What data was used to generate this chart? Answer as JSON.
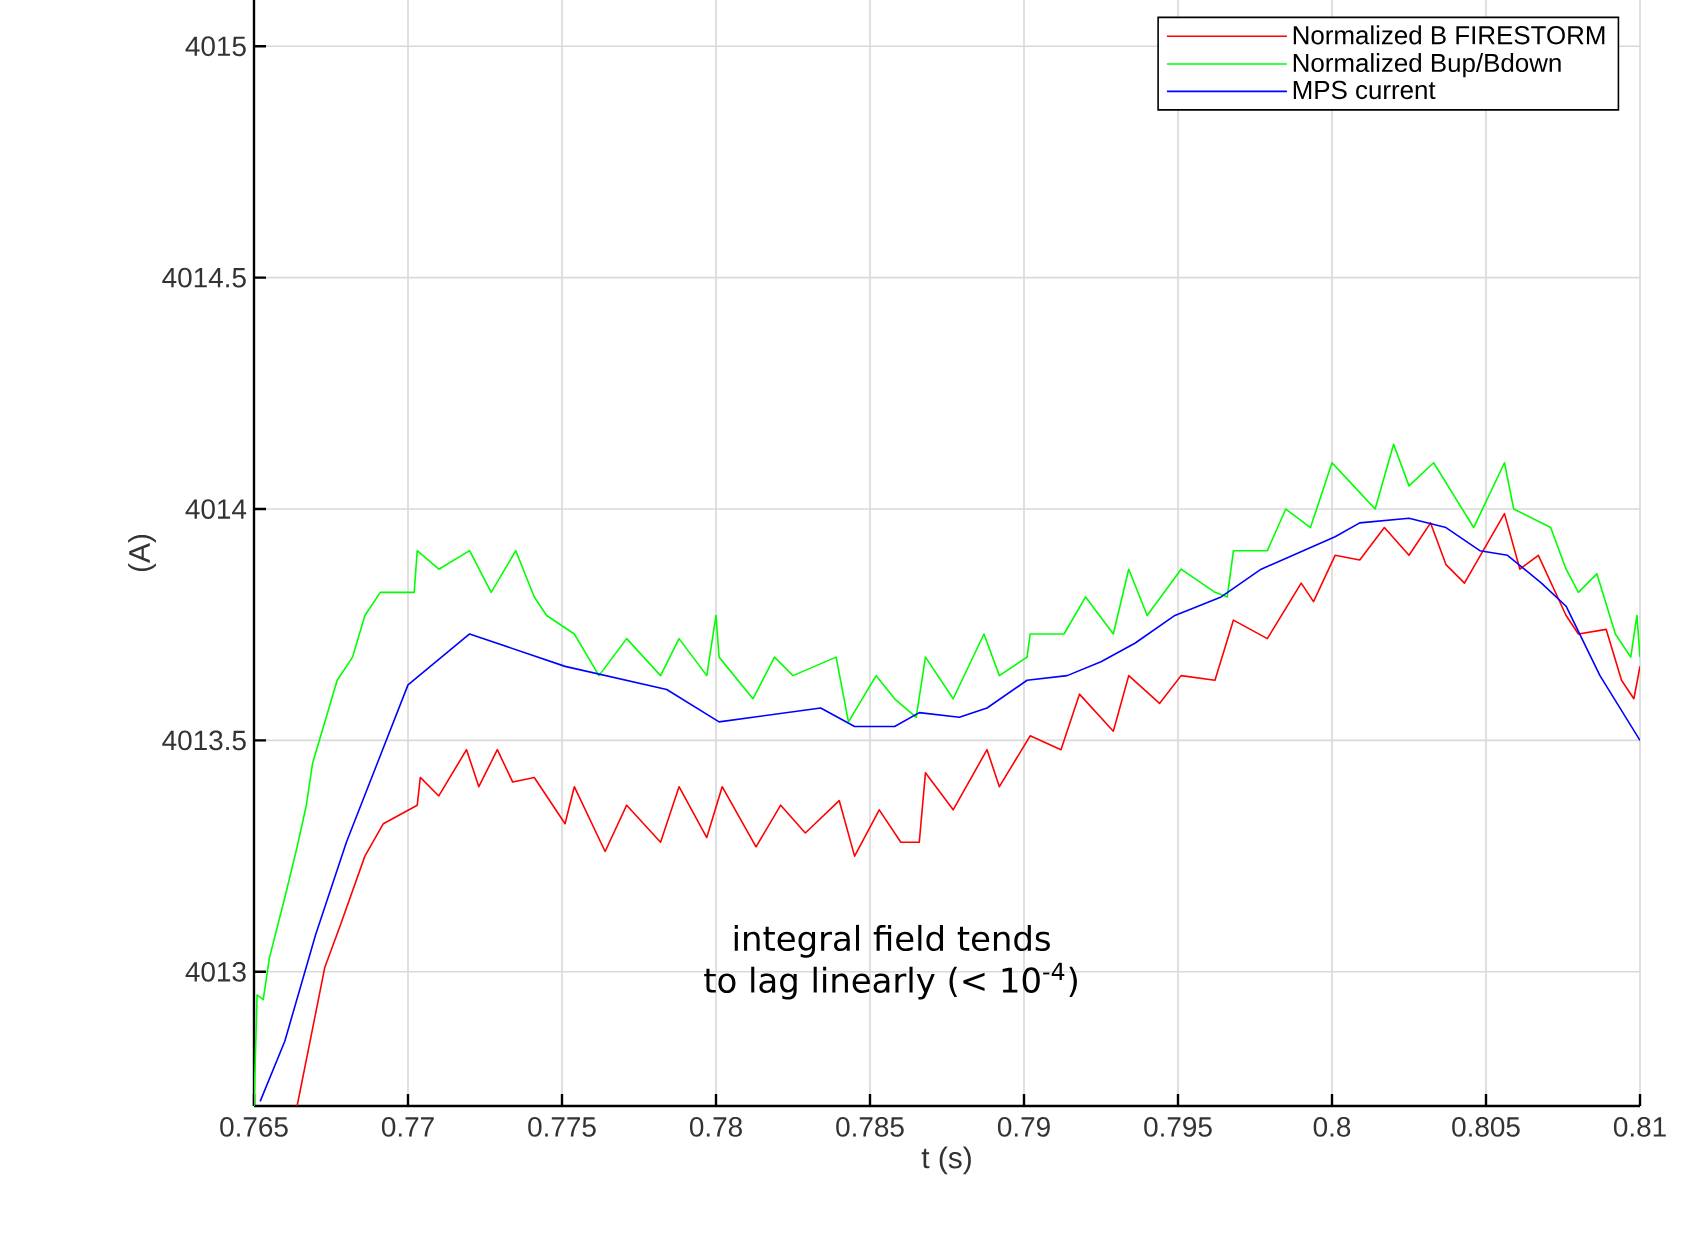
{
  "chart_data": {
    "type": "line",
    "xlabel": "t (s)",
    "ylabel": "(A)",
    "xlim": [
      0.765,
      0.81
    ],
    "ylim": [
      4012.71,
      4015.1
    ],
    "xticks": [
      0.765,
      0.77,
      0.775,
      0.78,
      0.785,
      0.79,
      0.795,
      0.8,
      0.805,
      0.81
    ],
    "yticks": [
      4013,
      4013.5,
      4014,
      4014.5,
      4015
    ],
    "grid": true,
    "legend": "top right",
    "line_style": "solid",
    "marker": "none",
    "annotations": [
      "integral field tends",
      "to lag linearly (< 10$^{-4}$)"
    ],
    "series": [
      {
        "name": "Normalized B FIRESTORM",
        "color": "#ff0000",
        "x": [
          0.7664,
          0.7673,
          0.7678,
          0.7686,
          0.7692,
          0.7703,
          0.7704,
          0.771,
          0.7719,
          0.7723,
          0.7729,
          0.7734,
          0.7741,
          0.7751,
          0.7754,
          0.7764,
          0.7771,
          0.7782,
          0.7788,
          0.7797,
          0.7802,
          0.7813,
          0.7821,
          0.7829,
          0.784,
          0.7845,
          0.7853,
          0.786,
          0.7866,
          0.7868,
          0.7877,
          0.7888,
          0.7892,
          0.7902,
          0.7912,
          0.7918,
          0.7929,
          0.7934,
          0.7944,
          0.7951,
          0.7962,
          0.7968,
          0.7979,
          0.799,
          0.7994,
          0.8001,
          0.8009,
          0.8017,
          0.8025,
          0.8032,
          0.8037,
          0.8043,
          0.8056,
          0.8061,
          0.8067,
          0.8076,
          0.808,
          0.8089,
          0.8094,
          0.8098,
          0.81
        ],
        "values": [
          4012.71,
          4013.01,
          4013.1,
          4013.25,
          4013.32,
          4013.36,
          4013.42,
          4013.38,
          4013.48,
          4013.4,
          4013.48,
          4013.41,
          4013.42,
          4013.32,
          4013.4,
          4013.26,
          4013.36,
          4013.28,
          4013.4,
          4013.29,
          4013.4,
          4013.27,
          4013.36,
          4013.3,
          4013.37,
          4013.25,
          4013.35,
          4013.28,
          4013.28,
          4013.43,
          4013.35,
          4013.48,
          4013.4,
          4013.51,
          4013.48,
          4013.6,
          4013.52,
          4013.64,
          4013.58,
          4013.64,
          4013.63,
          4013.76,
          4013.72,
          4013.84,
          4013.8,
          4013.9,
          4013.89,
          4013.96,
          4013.9,
          4013.97,
          4013.88,
          4013.84,
          4013.99,
          4013.87,
          4013.9,
          4013.77,
          4013.73,
          4013.74,
          4013.63,
          4013.59,
          4013.66
        ]
      },
      {
        "name": "Normalized Bup/Bdown",
        "color": "#00ff00",
        "x": [
          0.765,
          0.7651,
          0.7653,
          0.7655,
          0.766,
          0.7664,
          0.7667,
          0.7669,
          0.7673,
          0.7677,
          0.7682,
          0.7686,
          0.7691,
          0.7702,
          0.7703,
          0.771,
          0.772,
          0.7727,
          0.7735,
          0.7741,
          0.7745,
          0.7754,
          0.7762,
          0.7771,
          0.7782,
          0.7788,
          0.7797,
          0.78,
          0.7801,
          0.7812,
          0.7819,
          0.7825,
          0.7839,
          0.7843,
          0.7852,
          0.7858,
          0.7865,
          0.7868,
          0.7877,
          0.7887,
          0.7892,
          0.7901,
          0.7902,
          0.7913,
          0.792,
          0.7929,
          0.7934,
          0.794,
          0.7951,
          0.7962,
          0.7966,
          0.7968,
          0.7979,
          0.7985,
          0.7993,
          0.8,
          0.8007,
          0.8014,
          0.802,
          0.8025,
          0.8033,
          0.8046,
          0.8056,
          0.8059,
          0.8071,
          0.8076,
          0.808,
          0.8086,
          0.8092,
          0.8097,
          0.8099,
          0.81
        ],
        "values": [
          4012.71,
          4012.95,
          4012.94,
          4013.03,
          4013.16,
          4013.27,
          4013.36,
          4013.45,
          4013.54,
          4013.63,
          4013.68,
          4013.77,
          4013.82,
          4013.82,
          4013.91,
          4013.87,
          4013.91,
          4013.82,
          4013.91,
          4013.81,
          4013.77,
          4013.73,
          4013.64,
          4013.72,
          4013.64,
          4013.72,
          4013.64,
          4013.77,
          4013.68,
          4013.59,
          4013.68,
          4013.64,
          4013.68,
          4013.54,
          4013.64,
          4013.59,
          4013.55,
          4013.68,
          4013.59,
          4013.73,
          4013.64,
          4013.68,
          4013.73,
          4013.73,
          4013.81,
          4013.73,
          4013.87,
          4013.77,
          4013.87,
          4013.82,
          4013.81,
          4013.91,
          4013.91,
          4014.0,
          4013.96,
          4014.1,
          4014.05,
          4014.0,
          4014.14,
          4014.05,
          4014.1,
          4013.96,
          4014.1,
          4014.0,
          4013.96,
          4013.87,
          4013.82,
          4013.86,
          4013.73,
          4013.68,
          4013.77,
          4013.68
        ]
      },
      {
        "name": "MPS current",
        "color": "#0000ff",
        "x": [
          0.7652,
          0.766,
          0.767,
          0.768,
          0.769,
          0.77,
          0.772,
          0.7751,
          0.7784,
          0.7801,
          0.7834,
          0.7845,
          0.7858,
          0.7866,
          0.7879,
          0.7888,
          0.7901,
          0.7914,
          0.7925,
          0.7936,
          0.7949,
          0.7964,
          0.7977,
          0.8001,
          0.8009,
          0.8025,
          0.8037,
          0.8048,
          0.8057,
          0.8068,
          0.8076,
          0.8087,
          0.81
        ],
        "values": [
          4012.72,
          4012.85,
          4013.08,
          4013.28,
          4013.45,
          4013.62,
          4013.73,
          4013.66,
          4013.61,
          4013.54,
          4013.57,
          4013.53,
          4013.53,
          4013.56,
          4013.55,
          4013.57,
          4013.63,
          4013.64,
          4013.67,
          4013.71,
          4013.77,
          4013.81,
          4013.87,
          4013.94,
          4013.97,
          4013.98,
          4013.96,
          4013.91,
          4013.9,
          4013.84,
          4013.79,
          4013.64,
          4013.5
        ]
      }
    ]
  }
}
